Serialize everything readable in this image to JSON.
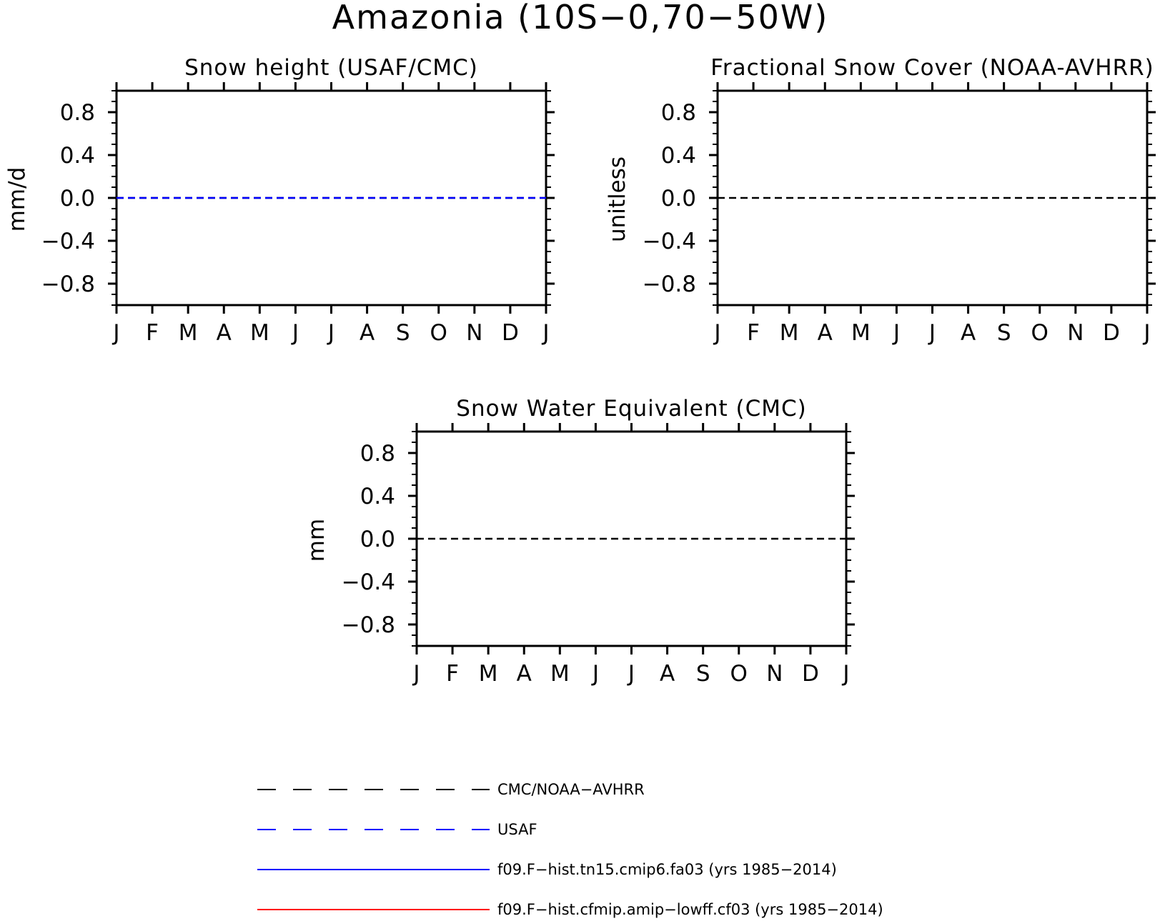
{
  "figure": {
    "title": "Amazonia (10S-0,70-50W)"
  },
  "legend": [
    {
      "label": "CMC/NOAA-AVHRR",
      "color": "#000000",
      "style": "dashed"
    },
    {
      "label": "USAF",
      "color": "#0000ff",
      "style": "dashed"
    },
    {
      "label": "f09.F-hist.tn15.cmip6.fa03 (yrs 1985-2014)",
      "color": "#0000ff",
      "style": "solid"
    },
    {
      "label": "f09.F-hist.cfmip.amip-lowff.cf03 (yrs 1985-2014)",
      "color": "#ff0000",
      "style": "solid"
    }
  ],
  "chart_data": [
    {
      "type": "line",
      "title": "Snow height (USAF/CMC)",
      "xlabel": "",
      "ylabel": "mm/d",
      "categories": [
        "J",
        "F",
        "M",
        "A",
        "M",
        "J",
        "J",
        "A",
        "S",
        "O",
        "N",
        "D",
        "J"
      ],
      "yticks": [
        "0.8",
        "0.4",
        "0.0",
        "-0.4",
        "-0.8"
      ],
      "ylim": [
        -1,
        1
      ],
      "grid": false,
      "series": [
        {
          "name": "CMC/NOAA-AVHRR",
          "values": [
            0,
            0,
            0,
            0,
            0,
            0,
            0,
            0,
            0,
            0,
            0,
            0,
            0
          ]
        },
        {
          "name": "USAF",
          "values": [
            0,
            0,
            0,
            0,
            0,
            0,
            0,
            0,
            0,
            0,
            0,
            0,
            0
          ]
        }
      ]
    },
    {
      "type": "line",
      "title": "Fractional Snow Cover (NOAA-AVHRR)",
      "xlabel": "",
      "ylabel": "unitless",
      "categories": [
        "J",
        "F",
        "M",
        "A",
        "M",
        "J",
        "J",
        "A",
        "S",
        "O",
        "N",
        "D",
        "J"
      ],
      "yticks": [
        "0.8",
        "0.4",
        "0.0",
        "-0.4",
        "-0.8"
      ],
      "ylim": [
        -1,
        1
      ],
      "grid": false,
      "series": [
        {
          "name": "CMC/NOAA-AVHRR",
          "values": [
            0,
            0,
            0,
            0,
            0,
            0,
            0,
            0,
            0,
            0,
            0,
            0,
            0
          ]
        }
      ]
    },
    {
      "type": "line",
      "title": "Snow Water Equivalent (CMC)",
      "xlabel": "",
      "ylabel": "mm",
      "categories": [
        "J",
        "F",
        "M",
        "A",
        "M",
        "J",
        "J",
        "A",
        "S",
        "O",
        "N",
        "D",
        "J"
      ],
      "yticks": [
        "0.8",
        "0.4",
        "0.0",
        "-0.4",
        "-0.8"
      ],
      "ylim": [
        -1,
        1
      ],
      "grid": false,
      "series": [
        {
          "name": "CMC/NOAA-AVHRR",
          "values": [
            0,
            0,
            0,
            0,
            0,
            0,
            0,
            0,
            0,
            0,
            0,
            0,
            0
          ]
        }
      ]
    }
  ]
}
